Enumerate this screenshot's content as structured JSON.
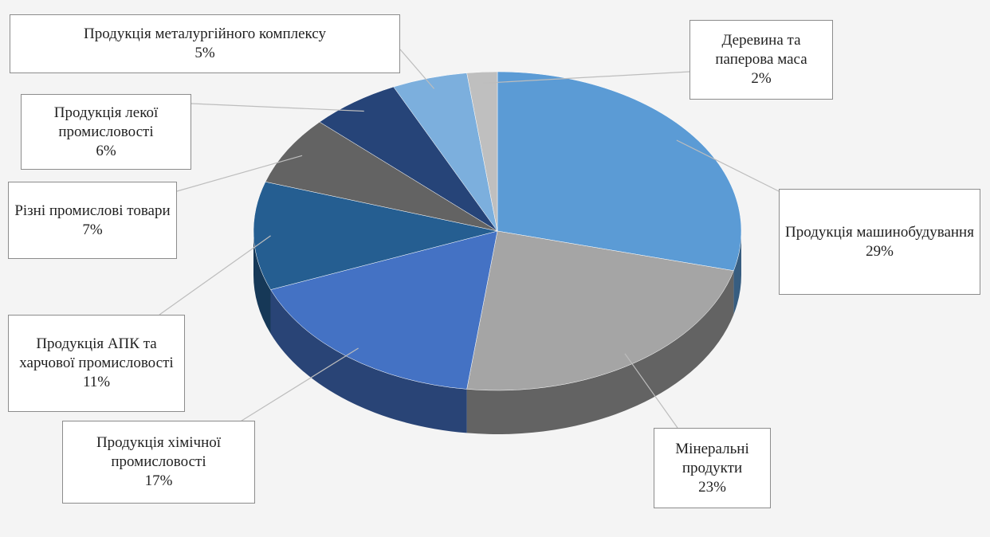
{
  "chart_data": {
    "type": "pie",
    "categories": [
      "Продукція машинобудування",
      "Мінеральні продукти",
      "Продукція хімічної промисловості",
      "Продукція АПК та харчової промисловості",
      "Різні промислові товари",
      "Продукція лекої промисловості",
      "Продукція металургійного комплексу",
      "Деревина та паперова маса"
    ],
    "values": [
      29,
      23,
      17,
      11,
      7,
      6,
      5,
      2
    ],
    "value_labels": [
      "29%",
      "23%",
      "17%",
      "11%",
      "7%",
      "6%",
      "5%",
      "2%"
    ],
    "colors": [
      "#5b9bd5",
      "#a5a5a5",
      "#4472c4",
      "#255e91",
      "#636363",
      "#264478",
      "#7cafdd",
      "#bfbfbf"
    ]
  }
}
